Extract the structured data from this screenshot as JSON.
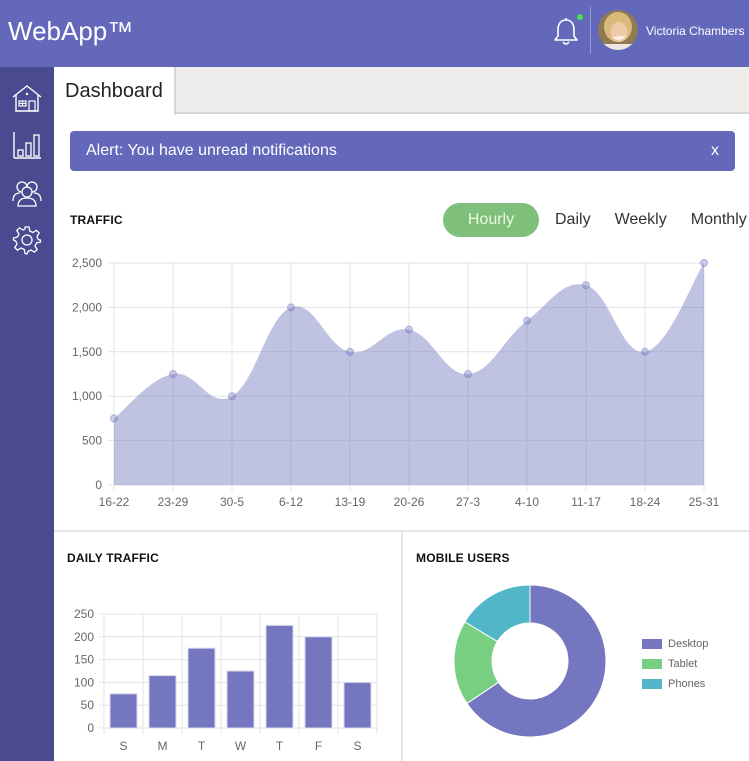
{
  "header": {
    "brand": "WebApp™",
    "user_name": "Victoria Chambers",
    "notification_dot_color": "#47e04e",
    "background": "#6368bb"
  },
  "sidebar": {
    "items": [
      {
        "icon": "home-icon",
        "label": "Home"
      },
      {
        "icon": "bar-chart-icon",
        "label": "Analytics"
      },
      {
        "icon": "users-icon",
        "label": "Users"
      },
      {
        "icon": "gear-icon",
        "label": "Settings"
      }
    ]
  },
  "tabs": [
    {
      "label": "Dashboard",
      "active": true
    }
  ],
  "alert": {
    "text": "Alert: You have unread notifications",
    "close_label": "x"
  },
  "traffic": {
    "title": "TRAFFIC",
    "periods": [
      "Hourly",
      "Daily",
      "Weekly",
      "Monthly"
    ],
    "active_period": "Hourly"
  },
  "daily_traffic": {
    "title": "DAILY TRAFFIC"
  },
  "mobile_users": {
    "title": "MOBILE USERS",
    "legend": [
      {
        "label": "Desktop",
        "color": "#7477bf"
      },
      {
        "label": "Tablet",
        "color": "#78cf82"
      },
      {
        "label": "Phones",
        "color": "#51b6c8"
      }
    ]
  },
  "chart_data": [
    {
      "type": "area",
      "title": "TRAFFIC",
      "categories": [
        "16-22",
        "23-29",
        "30-5",
        "6-12",
        "13-19",
        "20-26",
        "27-3",
        "4-10",
        "11-17",
        "18-24",
        "25-31"
      ],
      "values": [
        750,
        1250,
        1000,
        2000,
        1500,
        1750,
        1250,
        1850,
        2250,
        1500,
        2500
      ],
      "yticks": [
        "0",
        "500",
        "1,000",
        "1,500",
        "2,000",
        "2,500"
      ],
      "ylim": [
        0,
        2500
      ],
      "grid": true,
      "fill_color": "#c0c1e3"
    },
    {
      "type": "bar",
      "title": "DAILY TRAFFIC",
      "categories": [
        "S",
        "M",
        "T",
        "W",
        "T",
        "F",
        "S"
      ],
      "values": [
        75,
        115,
        175,
        125,
        225,
        200,
        100
      ],
      "yticks": [
        "0",
        "50",
        "100",
        "150",
        "200",
        "250"
      ],
      "ylim": [
        0,
        250
      ],
      "grid": true,
      "bar_color": "#7477bf"
    },
    {
      "type": "pie",
      "subtype": "doughnut",
      "title": "MOBILE USERS",
      "categories": [
        "Desktop",
        "Tablet",
        "Phones"
      ],
      "values": [
        2000,
        550,
        500
      ],
      "colors": [
        "#7477bf",
        "#78cf82",
        "#51b6c8"
      ],
      "legend_position": "right"
    }
  ]
}
